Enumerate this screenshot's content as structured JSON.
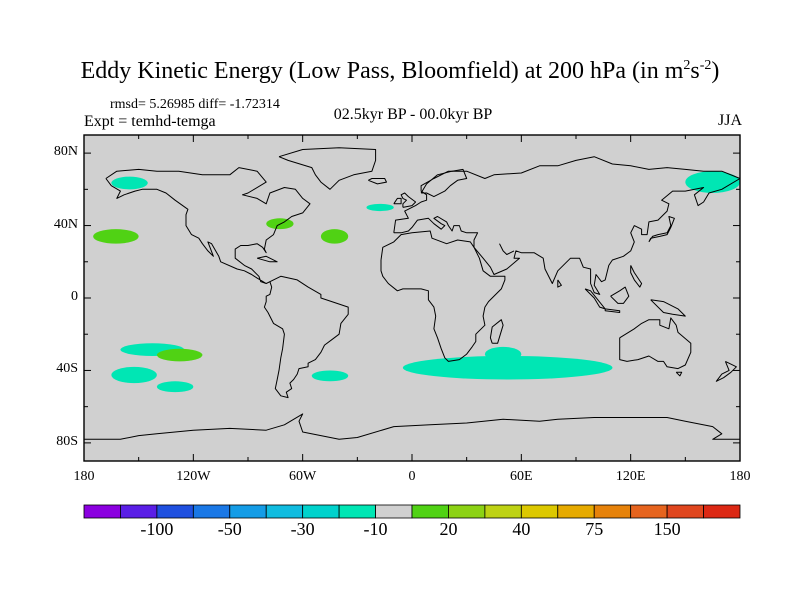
{
  "plot": {
    "title": "Eddy Kinetic Energy (Low Pass, Bloomfield) at 200 hPa (in m",
    "title_sup1": "2",
    "title_mid": "s",
    "title_sup2": "-2",
    "title_end": ")",
    "stats": "rmsd= 5.26985  diff= -1.72314",
    "experiment": "Expt = temhd-temga",
    "period": "02.5kyr BP - 00.0kyr BP",
    "season": "JJA"
  },
  "axes": {
    "lat_labels": [
      "80N",
      "40N",
      "0",
      "40S",
      "80S"
    ],
    "lon_labels": [
      "180",
      "120W",
      "60W",
      "0",
      "60E",
      "120E",
      "180"
    ]
  },
  "colorbar": {
    "colors": [
      "#8b00e0",
      "#5a1ee6",
      "#1f50e0",
      "#1a78e6",
      "#149ce6",
      "#10bce0",
      "#00d2cc",
      "#00e6b4",
      "#d0d0d0",
      "#50d214",
      "#8cd214",
      "#bed214",
      "#dcc800",
      "#e6aa00",
      "#e6820a",
      "#e6641e",
      "#e0461e",
      "#dc2814"
    ],
    "labels": [
      "-100",
      "-50",
      "-30",
      "-10",
      "20",
      "40",
      "75",
      "150"
    ]
  },
  "chart_data": {
    "type": "filled-contour-map",
    "title": "Eddy Kinetic Energy (Low Pass, Bloomfield) at 200 hPa (in m2s-2)",
    "units": "m2 s-2",
    "lon_range": [
      -180,
      180
    ],
    "lat_range": [
      -90,
      90
    ],
    "colorbar_labels": [
      -100,
      -50,
      -30,
      -10,
      20,
      40,
      75,
      150
    ],
    "anomaly_regions": [
      {
        "name": "south-indian-ocean",
        "lon": [
          -5,
          110
        ],
        "lat": [
          -45,
          -32
        ],
        "sign": "negative",
        "range": "-10 to -30"
      },
      {
        "name": "south-of-madagascar",
        "lon": [
          40,
          60
        ],
        "lat": [
          -35,
          -27
        ],
        "sign": "negative",
        "range": "-10 to -30"
      },
      {
        "name": "south-pacific-west",
        "lon": [
          -160,
          -125
        ],
        "lat": [
          -32,
          -25
        ],
        "sign": "negative",
        "range": "-10 to -30"
      },
      {
        "name": "south-pacific-east",
        "lon": [
          -165,
          -140
        ],
        "lat": [
          -47,
          -38
        ],
        "sign": "negative",
        "range": "-10 to -30"
      },
      {
        "name": "south-pacific-mid",
        "lon": [
          -140,
          -120
        ],
        "lat": [
          -52,
          -46
        ],
        "sign": "negative",
        "range": "-10 to -30"
      },
      {
        "name": "south-atlantic-west",
        "lon": [
          -55,
          -35
        ],
        "lat": [
          -46,
          -40
        ],
        "sign": "negative",
        "range": "-10 to -30"
      },
      {
        "name": "north-pacific-east",
        "lon": [
          -165,
          -145
        ],
        "lat": [
          60,
          67
        ],
        "sign": "negative",
        "range": "-10 to -30"
      },
      {
        "name": "north-pacific-west",
        "lon": [
          150,
          180
        ],
        "lat": [
          58,
          70
        ],
        "sign": "negative",
        "range": "-10 to -30"
      },
      {
        "name": "north-atlantic",
        "lon": [
          -25,
          -10
        ],
        "lat": [
          48,
          52
        ],
        "sign": "negative",
        "range": "-10 to -30"
      },
      {
        "name": "south-pacific-subtropical",
        "lon": [
          -140,
          -115
        ],
        "lat": [
          -35,
          -28
        ],
        "sign": "positive",
        "range": "10 to 20"
      },
      {
        "name": "north-pacific-subtropical",
        "lon": [
          -175,
          -150
        ],
        "lat": [
          30,
          38
        ],
        "sign": "positive",
        "range": "10 to 20"
      },
      {
        "name": "us-east-coast",
        "lon": [
          -80,
          -65
        ],
        "lat": [
          38,
          44
        ],
        "sign": "positive",
        "range": "10 to 20"
      },
      {
        "name": "north-atlantic-mid",
        "lon": [
          -50,
          -35
        ],
        "lat": [
          30,
          38
        ],
        "sign": "positive",
        "range": "10 to 20"
      }
    ]
  }
}
